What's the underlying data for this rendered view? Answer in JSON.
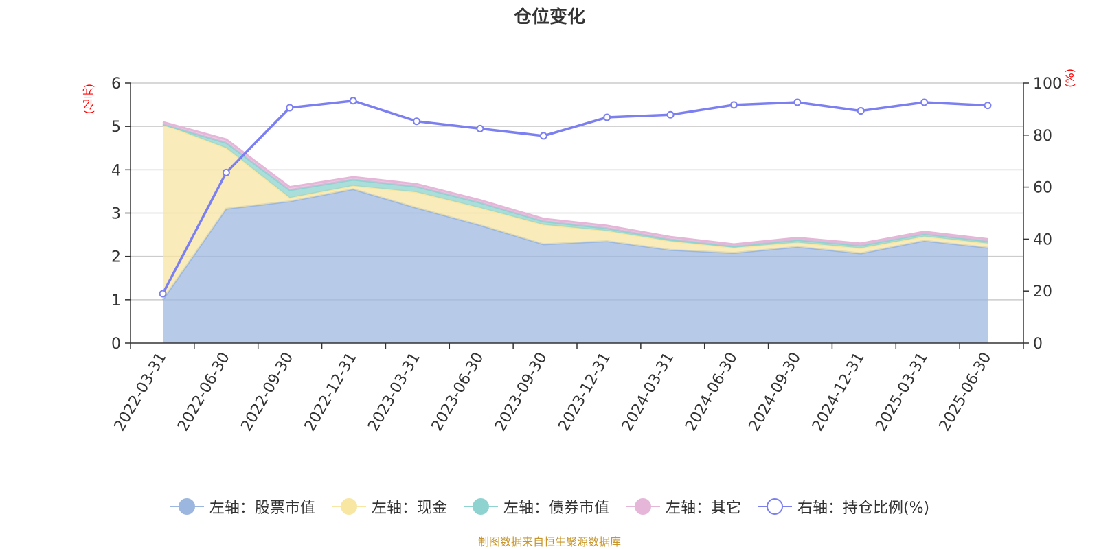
{
  "title": "仓位变化",
  "footer": "制图数据来自恒生聚源数据库",
  "unit_left": "(亿元)",
  "unit_right": "(%)",
  "colors": {
    "stock": "#9bb7e0",
    "cash": "#f8e6a3",
    "bond": "#8ed3cf",
    "other": "#e6b6d9",
    "ratio": "#7b7ff0",
    "footer": "#c8962a",
    "unit": "#ff0000"
  },
  "legend": [
    {
      "key": "stock",
      "label": "左轴：股票市值",
      "icon": "filled-circle-icon"
    },
    {
      "key": "cash",
      "label": "左轴：现金",
      "icon": "filled-circle-icon"
    },
    {
      "key": "bond",
      "label": "左轴：债券市值",
      "icon": "filled-circle-icon"
    },
    {
      "key": "other",
      "label": "左轴：其它",
      "icon": "filled-circle-icon"
    },
    {
      "key": "ratio",
      "label": "右轴：持仓比例(%)",
      "icon": "hollow-circle-icon"
    }
  ],
  "chart_data": {
    "type": "area",
    "title": "仓位变化",
    "categories": [
      "2022-03-31",
      "2022-06-30",
      "2022-09-30",
      "2022-12-31",
      "2023-03-31",
      "2023-06-30",
      "2023-09-30",
      "2023-12-31",
      "2024-03-31",
      "2024-06-30",
      "2024-09-30",
      "2024-12-31",
      "2025-03-31",
      "2025-06-30"
    ],
    "stacked": true,
    "left_axis": {
      "label": "(亿元)",
      "ylim": [
        0,
        6
      ],
      "ticks": [
        0,
        1,
        2,
        3,
        4,
        5,
        6
      ]
    },
    "right_axis": {
      "label": "(%)",
      "ylim": [
        0,
        100
      ],
      "ticks": [
        0,
        20,
        40,
        60,
        80,
        100
      ]
    },
    "grid": true,
    "legend_position": "bottom",
    "series": [
      {
        "name": "左轴：股票市值",
        "axis": "left",
        "type": "area",
        "values": [
          1.0,
          3.1,
          3.27,
          3.55,
          3.12,
          2.72,
          2.28,
          2.35,
          2.15,
          2.08,
          2.22,
          2.07,
          2.36,
          2.2
        ]
      },
      {
        "name": "左轴：现金",
        "axis": "left",
        "type": "area",
        "values": [
          4.05,
          1.4,
          0.08,
          0.08,
          0.36,
          0.4,
          0.45,
          0.24,
          0.2,
          0.12,
          0.1,
          0.12,
          0.1,
          0.1
        ]
      },
      {
        "name": "左轴：债券市值",
        "axis": "left",
        "type": "area",
        "values": [
          0.0,
          0.12,
          0.18,
          0.14,
          0.13,
          0.12,
          0.08,
          0.06,
          0.04,
          0.03,
          0.06,
          0.06,
          0.06,
          0.05
        ]
      },
      {
        "name": "左轴：其它",
        "axis": "left",
        "type": "area",
        "values": [
          0.05,
          0.08,
          0.07,
          0.06,
          0.06,
          0.06,
          0.06,
          0.06,
          0.06,
          0.05,
          0.05,
          0.05,
          0.05,
          0.05
        ]
      },
      {
        "name": "右轴：持仓比例(%)",
        "axis": "right",
        "type": "line",
        "values": [
          19,
          65.6,
          90.5,
          93.2,
          85.3,
          82.5,
          79.7,
          86.8,
          87.8,
          91.6,
          92.6,
          89.3,
          92.6,
          91.4
        ]
      }
    ]
  }
}
